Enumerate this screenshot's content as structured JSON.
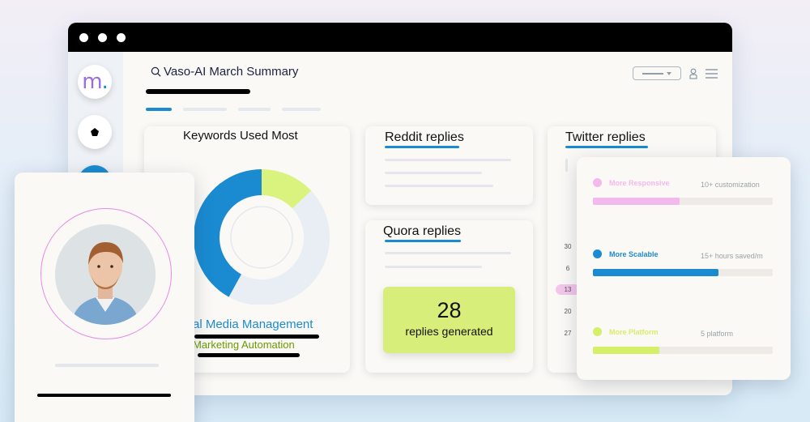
{
  "header": {
    "title": "Vaso-AI March Summary",
    "search_icon": "search-icon",
    "user_icon": "user-icon",
    "menu_icon": "menu-icon"
  },
  "sidebar": {
    "logo_letter": "m",
    "logo_dot": ".",
    "items": [
      {
        "icon": "pentagon-icon"
      },
      {
        "icon": "circle-icon"
      }
    ]
  },
  "keywords": {
    "title": "Keywords Used Most",
    "legend": [
      "al Media Management",
      "Marketing Automation"
    ],
    "legend_colors": [
      "#1a8bd1",
      "#6a9a00"
    ],
    "slices": [
      {
        "label": "al Media Management",
        "share": 0.42,
        "color": "#1a8bd1"
      },
      {
        "label": "Marketing Automation",
        "share": 0.13,
        "color": "#d9f37e"
      },
      {
        "label": "Other",
        "share": 0.45,
        "color": "#e8eef3"
      }
    ]
  },
  "reddit": {
    "title": "Reddit replies"
  },
  "quora": {
    "title": "Quora replies",
    "count": "28",
    "count_label": "replies generated"
  },
  "twitter": {
    "title": "Twitter replies",
    "calendar": [
      "30",
      "6",
      "13",
      "20",
      "27"
    ],
    "highlight_day": "13"
  },
  "features": [
    {
      "label": "More Responsive",
      "value": "10+ customization",
      "color": "#f4b9ec",
      "progress": 0.48
    },
    {
      "label": "More Scalable",
      "value": "15+ hours saved/m",
      "color": "#1a8bd1",
      "progress": 0.7
    },
    {
      "label": "More Platform",
      "value": "5 platform",
      "color": "#d4ef6a",
      "progress": 0.37
    }
  ],
  "colors": {
    "accent": "#1a8bd1",
    "lime": "#d7ef7a",
    "pink": "#e58ae8"
  }
}
